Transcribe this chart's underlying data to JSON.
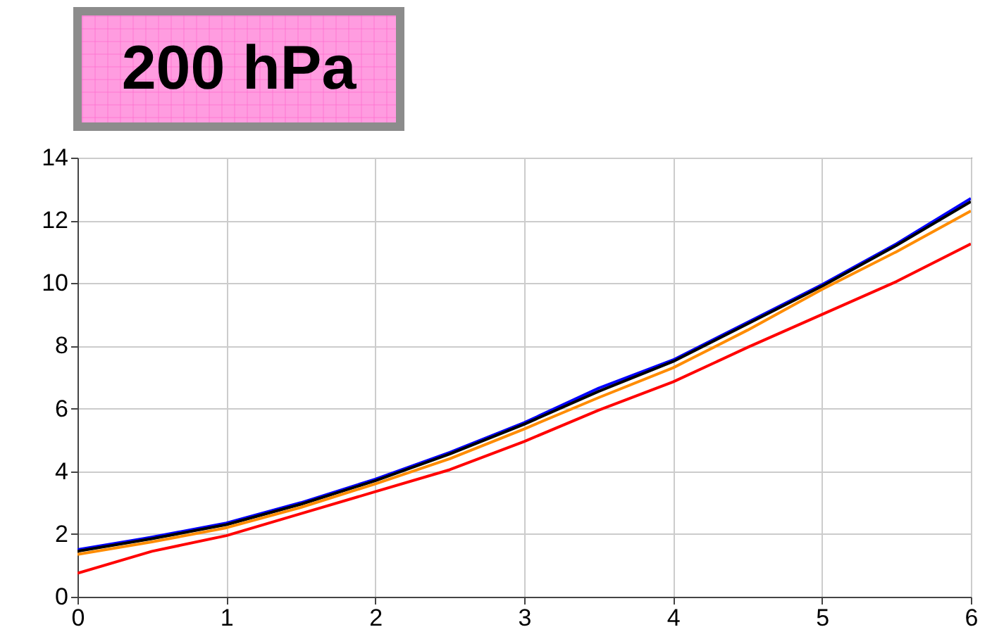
{
  "chart_data": {
    "type": "line",
    "title": "200 hPa",
    "x": [
      0,
      0.5,
      1,
      1.5,
      2,
      2.5,
      3,
      3.5,
      4,
      4.5,
      5,
      5.5,
      6
    ],
    "series": [
      {
        "color": "#0000ff",
        "values": [
          1.5,
          1.9,
          2.35,
          3.0,
          3.75,
          4.6,
          5.55,
          6.65,
          7.55,
          8.75,
          9.95,
          11.25,
          12.7
        ]
      },
      {
        "color": "#000000",
        "values": [
          1.45,
          1.85,
          2.3,
          2.95,
          3.7,
          4.55,
          5.5,
          6.55,
          7.5,
          8.7,
          9.9,
          11.2,
          12.6
        ]
      },
      {
        "color": "#ff8c00",
        "values": [
          1.35,
          1.75,
          2.2,
          2.85,
          3.6,
          4.4,
          5.35,
          6.35,
          7.3,
          8.5,
          9.8,
          11.0,
          12.3
        ]
      },
      {
        "color": "#ff0000",
        "values": [
          0.75,
          1.45,
          1.95,
          2.65,
          3.35,
          4.05,
          4.95,
          5.95,
          6.85,
          7.95,
          9.0,
          10.05,
          11.25
        ]
      }
    ],
    "xlim": [
      0,
      6
    ],
    "xticks": [
      0,
      1,
      2,
      3,
      4,
      5,
      6
    ],
    "ylim": [
      0,
      14
    ],
    "yticks": [
      0,
      2,
      4,
      6,
      8,
      10,
      12,
      14
    ],
    "grid": true
  }
}
